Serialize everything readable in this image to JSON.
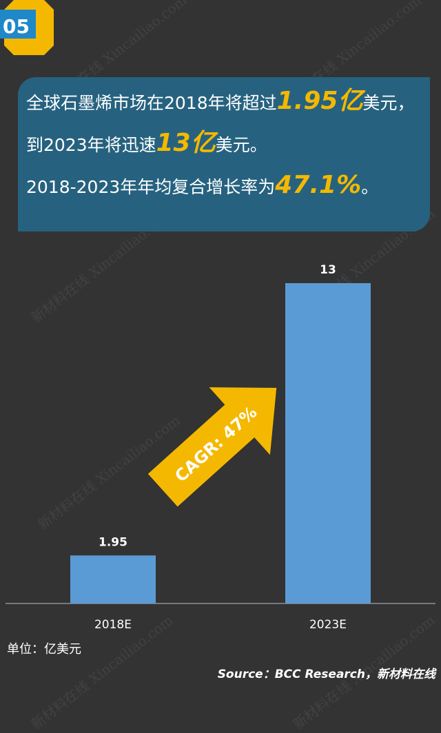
{
  "badge": {
    "number": "05",
    "color": "#f5b800",
    "accent": "#1e88c8"
  },
  "headline": {
    "line1": {
      "before": "全球石墨烯市场在2018年将超过",
      "highlight": "1.95亿",
      "after": "美元，"
    },
    "line2": {
      "before": "到2023年将迅速",
      "highlight": "13亿",
      "after": "美元。"
    },
    "line3": {
      "before": "2018-2023年年均复合增长率为",
      "highlight": "47.1%",
      "after": "。"
    },
    "highlight_color": "#f5b800",
    "background_color": "#26627f"
  },
  "chart_data": {
    "type": "bar",
    "categories": [
      "2018E",
      "2023E"
    ],
    "values": [
      1.95,
      13
    ],
    "data_labels": [
      "1.95",
      "13"
    ],
    "ylim": [
      0,
      13
    ],
    "grid": false,
    "bar_color": "#5b9bd5",
    "annotation": {
      "text": "CAGR: 47%",
      "color": "#f5b800"
    }
  },
  "unit_label": "单位：亿美元",
  "source": "Source：BCC Research，新材料在线",
  "watermark": {
    "cn": "新材料在线",
    "en": "Xincailiao.com"
  }
}
